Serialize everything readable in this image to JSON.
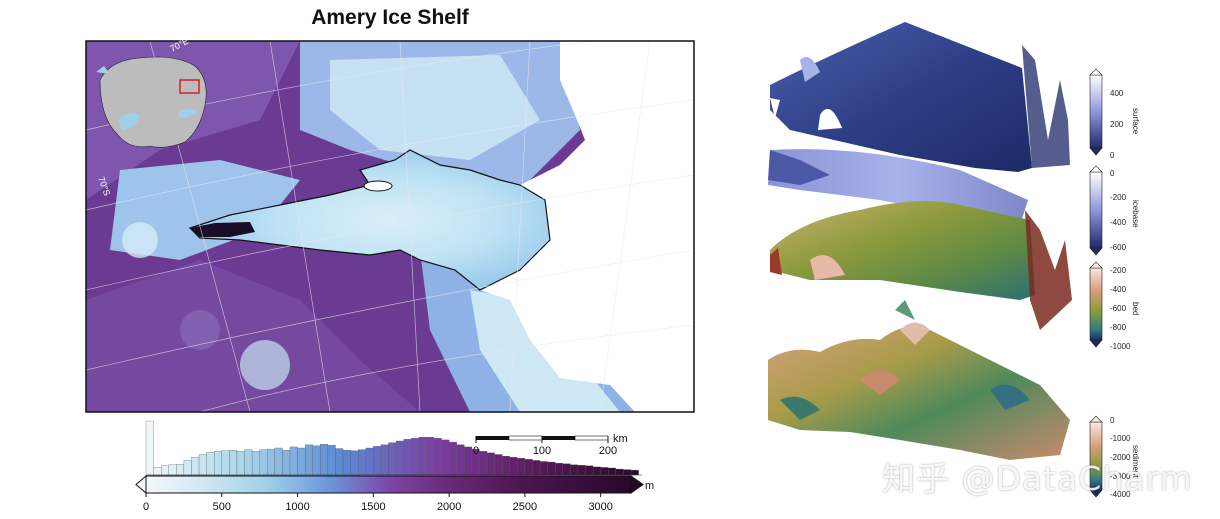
{
  "title": "Amery Ice Shelf",
  "map": {
    "graticule_labels": [
      "70°E",
      "70°S"
    ]
  },
  "scalebar": {
    "unit": "km",
    "ticks": [
      "0",
      "100",
      "200"
    ]
  },
  "colorbar": {
    "unit": "m",
    "ticks": [
      "0",
      "500",
      "1000",
      "1500",
      "2000",
      "2500",
      "3000"
    ],
    "range": [
      0,
      3200
    ],
    "colormap": [
      "#f2f8fa",
      "#a9d6ea",
      "#5b8bd6",
      "#7b3fa0",
      "#5a1a5c",
      "#2a0a2c"
    ]
  },
  "chart_data": {
    "type": "bar",
    "title": "",
    "xlabel": "",
    "ylabel": "",
    "xlim": [
      0,
      3200
    ],
    "bin_width": 50,
    "values": [
      1.0,
      0.14,
      0.17,
      0.19,
      0.2,
      0.27,
      0.33,
      0.38,
      0.42,
      0.44,
      0.45,
      0.46,
      0.44,
      0.47,
      0.44,
      0.47,
      0.48,
      0.5,
      0.46,
      0.52,
      0.5,
      0.56,
      0.54,
      0.57,
      0.55,
      0.49,
      0.46,
      0.45,
      0.47,
      0.5,
      0.53,
      0.56,
      0.6,
      0.63,
      0.66,
      0.68,
      0.7,
      0.7,
      0.68,
      0.65,
      0.61,
      0.56,
      0.52,
      0.48,
      0.44,
      0.41,
      0.38,
      0.35,
      0.33,
      0.31,
      0.29,
      0.27,
      0.25,
      0.24,
      0.22,
      0.21,
      0.19,
      0.18,
      0.17,
      0.15,
      0.14,
      0.13,
      0.11,
      0.1,
      0.09
    ]
  },
  "layers": [
    {
      "name": "surface",
      "ticks": [
        "400",
        "200",
        "0"
      ]
    },
    {
      "name": "icebase",
      "ticks": [
        "0",
        "-200",
        "-400",
        "-600"
      ]
    },
    {
      "name": "bed",
      "ticks": [
        "-200",
        "-400",
        "-600",
        "-800",
        "-1000"
      ]
    },
    {
      "name": "sediment",
      "ticks": [
        "0",
        "-1000",
        "-2000",
        "-3000",
        "-4000"
      ]
    }
  ],
  "watermark": "知乎 @DataCharm"
}
